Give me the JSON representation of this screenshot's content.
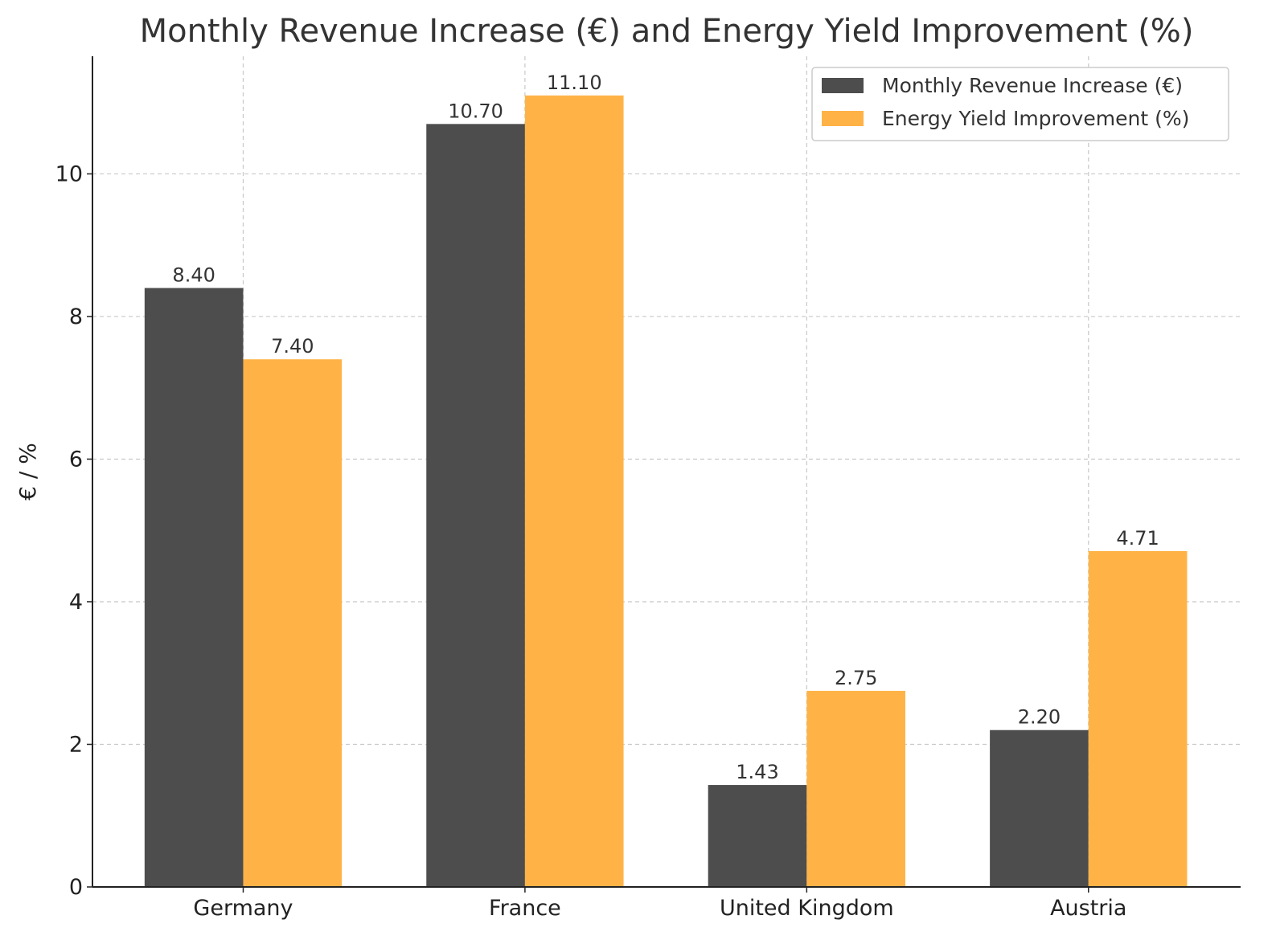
{
  "chart_data": {
    "type": "bar",
    "title": "Monthly Revenue Increase (€) and Energy Yield Improvement (%)",
    "xlabel": "",
    "ylabel": "€ / %",
    "categories": [
      "Germany",
      "France",
      "United Kingdom",
      "Austria"
    ],
    "series": [
      {
        "name": "Monthly Revenue Increase (€)",
        "values": [
          8.4,
          10.7,
          1.43,
          2.2
        ],
        "labels": [
          "8.40",
          "10.70",
          "1.43",
          "2.20"
        ],
        "color": "#4d4d4d"
      },
      {
        "name": "Energy Yield Improvement (%)",
        "values": [
          7.4,
          11.1,
          2.75,
          4.71
        ],
        "labels": [
          "7.40",
          "11.10",
          "2.75",
          "4.71"
        ],
        "color": "#ffb347"
      }
    ],
    "ylim": [
      0,
      11.65
    ],
    "yticks": [
      0,
      2,
      4,
      6,
      8,
      10
    ],
    "grid": true,
    "legend": "top-right"
  }
}
